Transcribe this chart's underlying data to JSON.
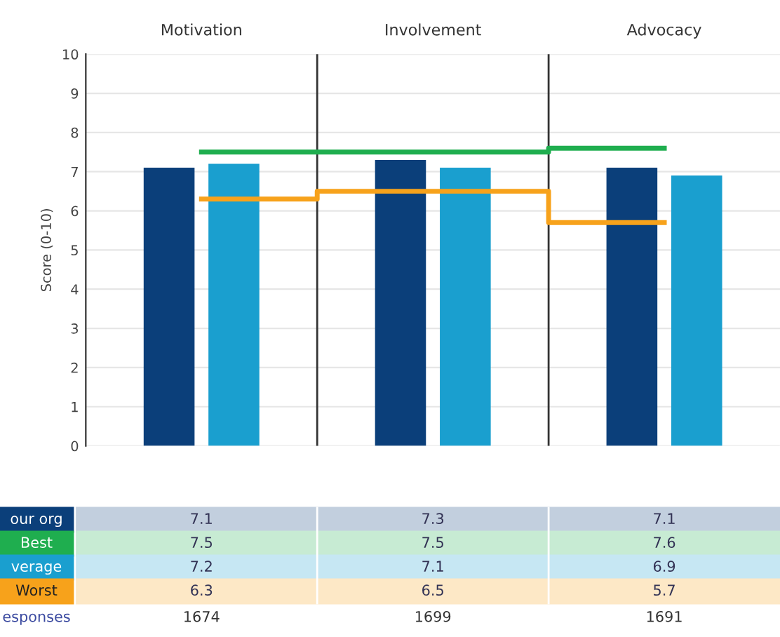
{
  "chart_data": {
    "type": "bar",
    "ylabel": "Score (0-10)",
    "categories": [
      "Motivation",
      "Involvement",
      "Advocacy"
    ],
    "series": [
      {
        "name": "our org",
        "color": "#0b3f7a",
        "values": [
          7.1,
          7.3,
          7.1
        ]
      },
      {
        "name": "Best",
        "type": "step",
        "color": "#1fae4f",
        "values": [
          7.5,
          7.5,
          7.6
        ]
      },
      {
        "name": "verage",
        "color": "#1a9fcf",
        "values": [
          7.2,
          7.1,
          6.9
        ]
      },
      {
        "name": "Worst",
        "type": "step",
        "color": "#f7a21b",
        "values": [
          6.3,
          6.5,
          5.7
        ]
      }
    ],
    "ylim": [
      0,
      10
    ],
    "yticks": [
      0,
      1,
      2,
      3,
      4,
      5,
      6,
      7,
      8,
      9,
      10
    ],
    "grid": "y",
    "data_labels": true,
    "annotations": [
      "esponses",
      "1674",
      "1699",
      "1691"
    ]
  }
}
